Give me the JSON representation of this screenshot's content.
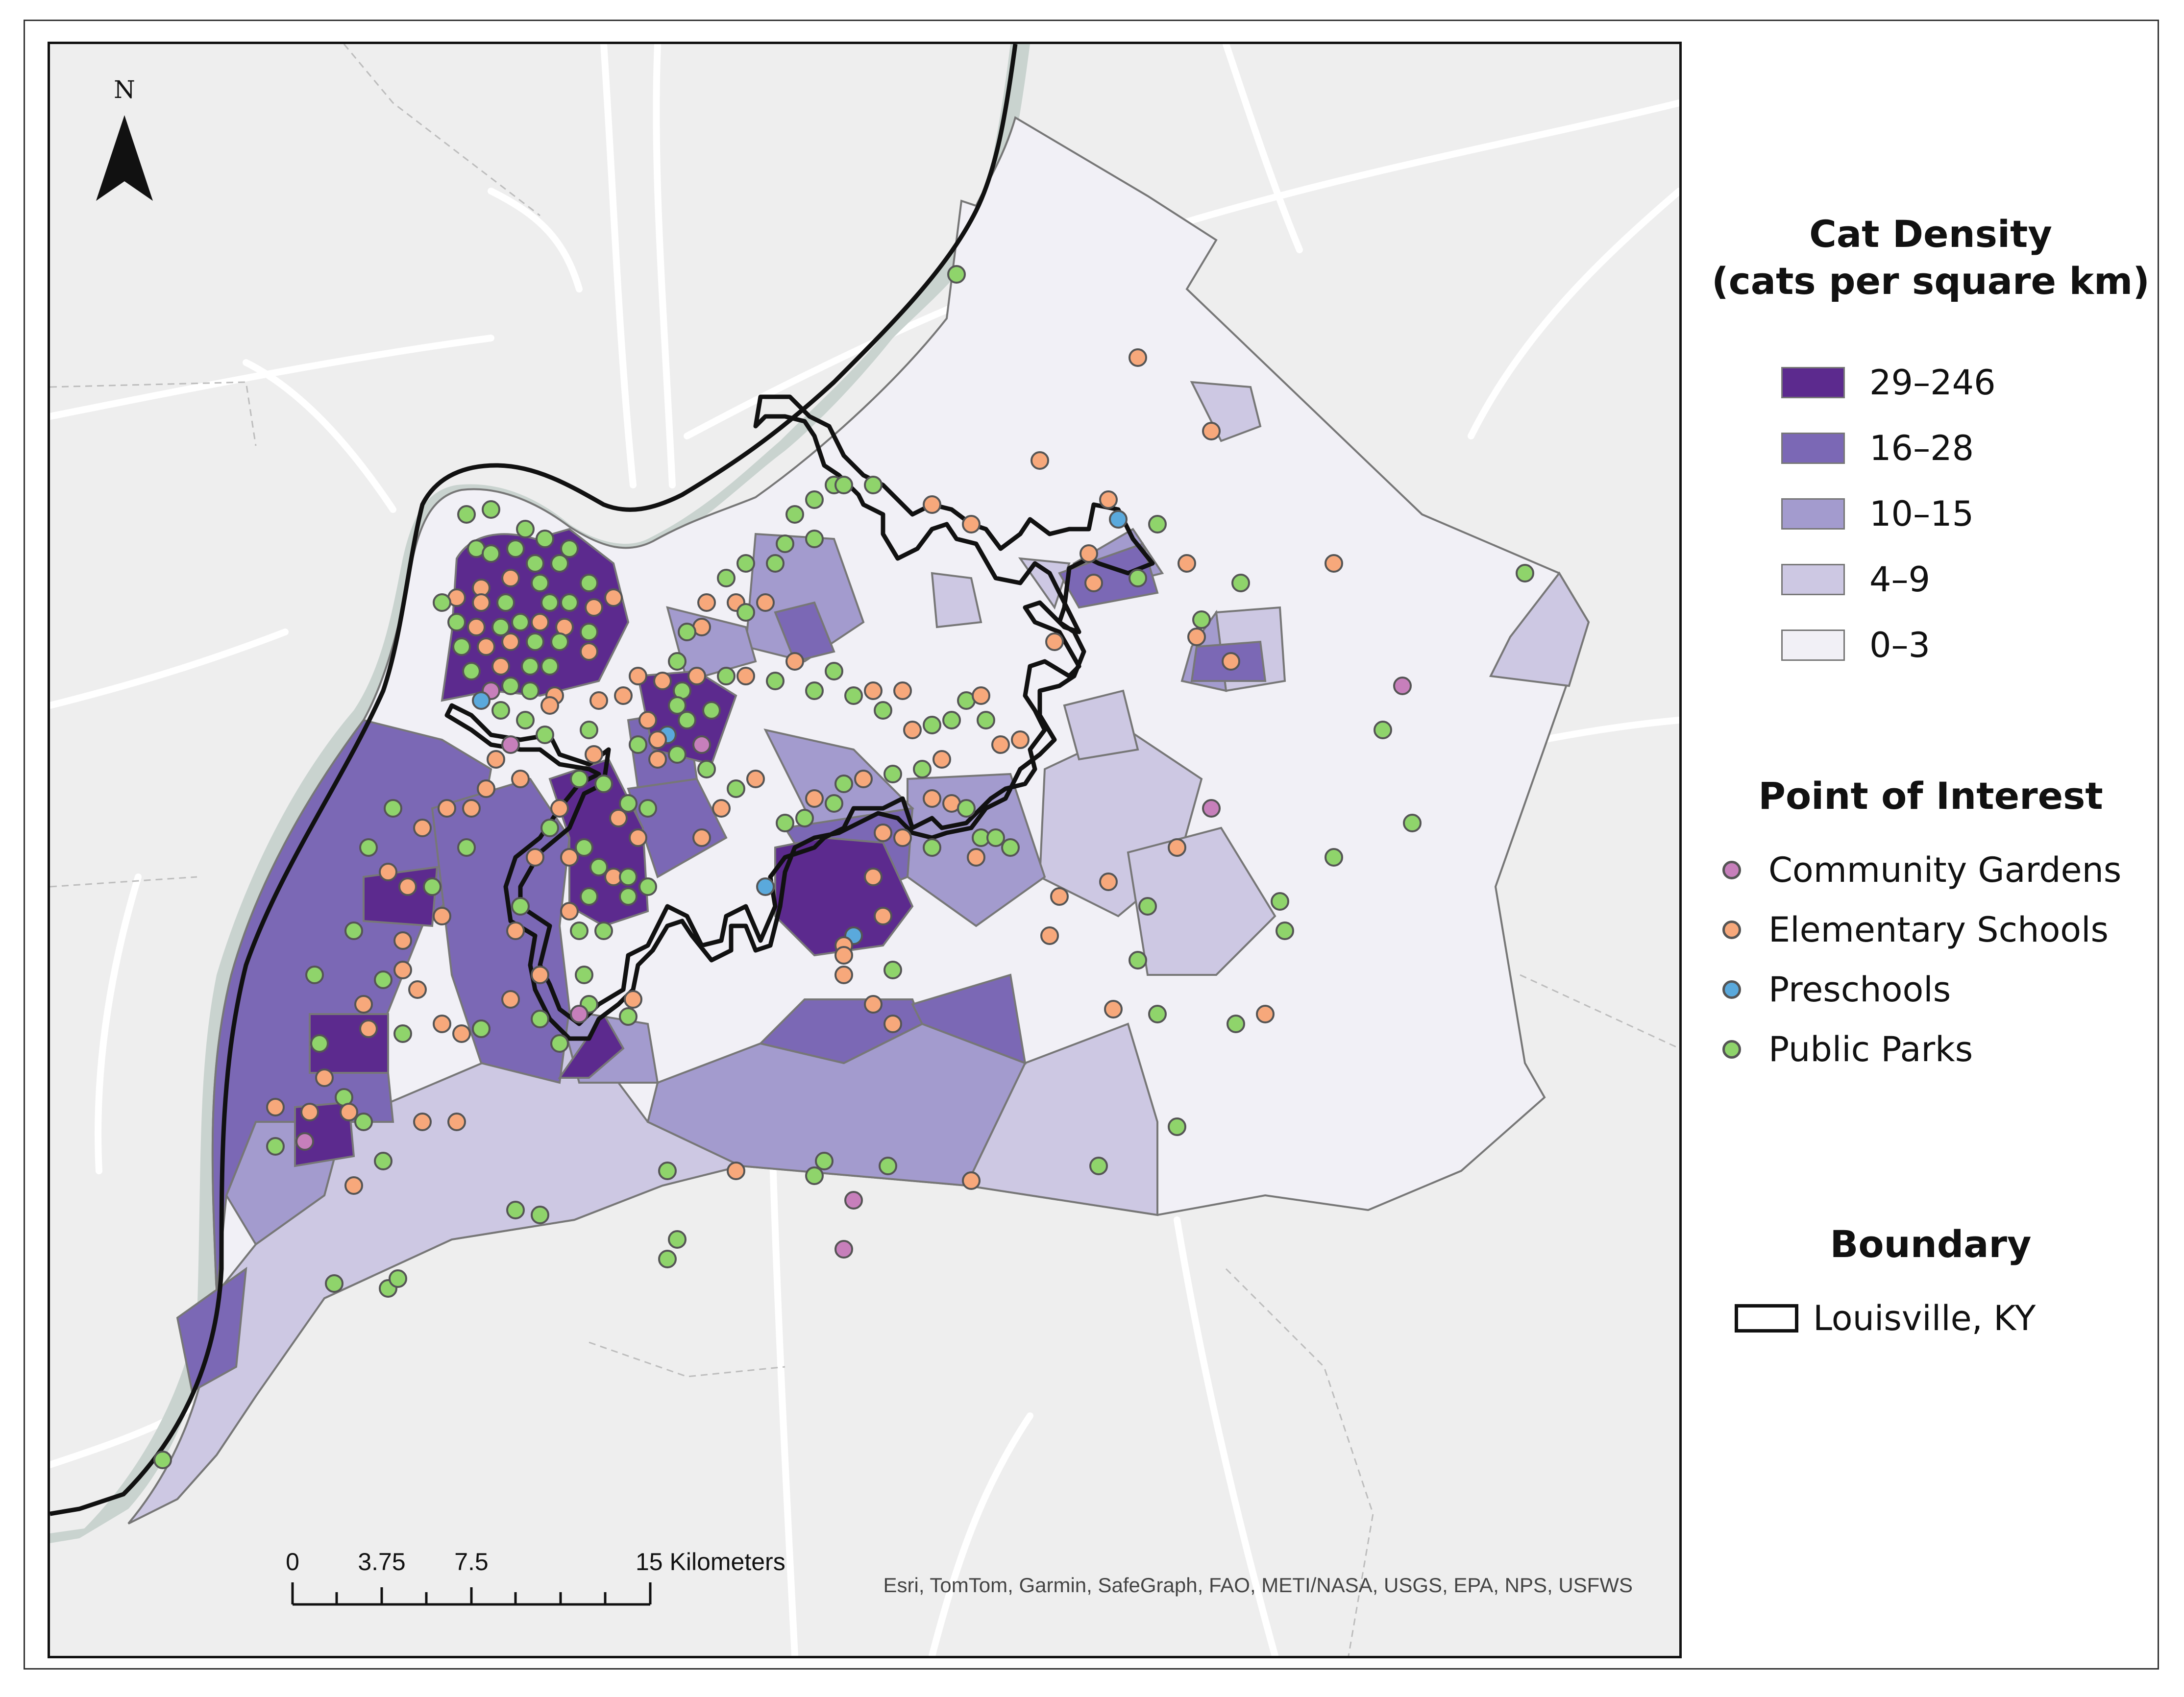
{
  "map": {
    "north_arrow": {
      "label": "N"
    },
    "scale_bar": {
      "ticks": [
        "0",
        "3.75",
        "7.5"
      ],
      "end_label": "15 Kilometers"
    },
    "attribution": "Esri, TomTom, Garmin, SafeGraph, FAO, METI/NASA, USGS, EPA, NPS, USFWS",
    "colors": {
      "water": "#c9d3cf",
      "land": "#eeeeee",
      "roads": "#ffffff",
      "boundary": "#111111",
      "tract_outline": "#777777"
    }
  },
  "legend": {
    "density": {
      "title_line1": "Cat Density",
      "title_line2": "(cats per square km)",
      "classes": [
        {
          "label": "29–246",
          "color": "#5c2a8e"
        },
        {
          "label": "16–28",
          "color": "#7b68b5"
        },
        {
          "label": "10–15",
          "color": "#a39bce"
        },
        {
          "label": "4–9",
          "color": "#cdc8e3"
        },
        {
          "label": "0–3",
          "color": "#f1f0f6"
        }
      ]
    },
    "poi": {
      "title": "Point of Interest",
      "items": [
        {
          "label": "Community Gardens",
          "color": "#c77fbb",
          "icon": "pink-dot-icon"
        },
        {
          "label": "Elementary Schools",
          "color": "#f7a87b",
          "icon": "orange-dot-icon"
        },
        {
          "label": "Preschools",
          "color": "#5aa9dc",
          "icon": "blue-dot-icon"
        },
        {
          "label": "Public Parks",
          "color": "#8fd46b",
          "icon": "green-dot-icon"
        }
      ]
    },
    "boundary": {
      "title": "Boundary",
      "label": "Louisville, KY"
    }
  }
}
